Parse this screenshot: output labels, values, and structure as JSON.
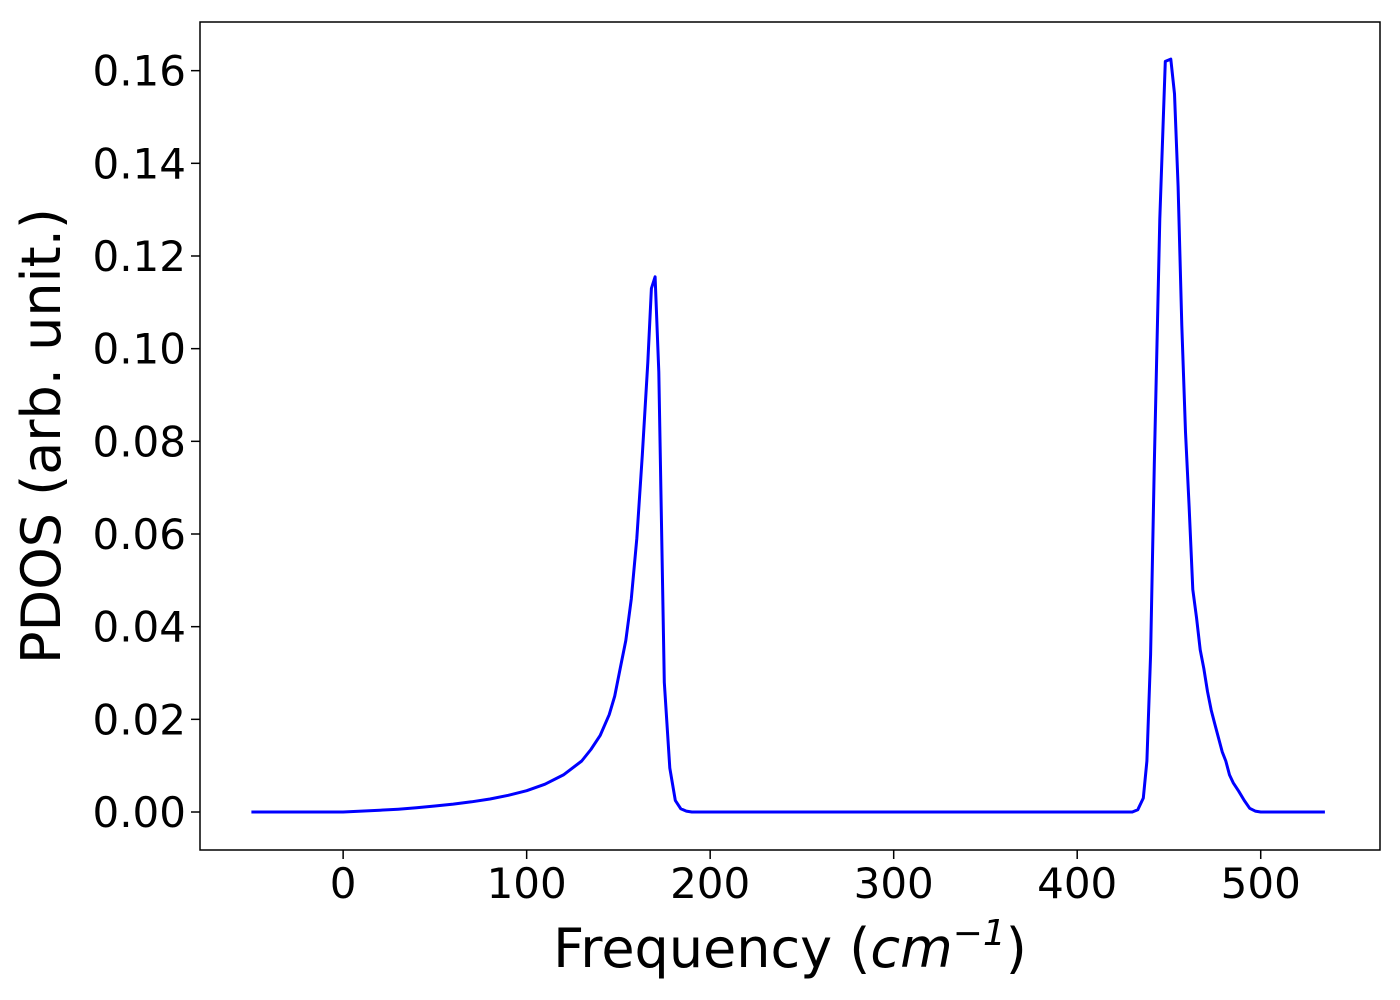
{
  "chart_data": {
    "type": "line",
    "title": "",
    "xlabel_prefix": "Frequency (",
    "xlabel_unit_base": "cm",
    "xlabel_unit_sup": "−1",
    "xlabel_suffix": ")",
    "ylabel": "PDOS (arb. unit.)",
    "xlim": [
      -78,
      565
    ],
    "ylim": [
      -0.0082,
      0.1705
    ],
    "xticks": [
      0,
      100,
      200,
      300,
      400,
      500
    ],
    "xtick_labels": [
      "0",
      "100",
      "200",
      "300",
      "400",
      "500"
    ],
    "yticks": [
      0.0,
      0.02,
      0.04,
      0.06,
      0.08,
      0.1,
      0.12,
      0.14,
      0.16
    ],
    "ytick_labels": [
      "0.00",
      "0.02",
      "0.04",
      "0.06",
      "0.08",
      "0.10",
      "0.12",
      "0.14",
      "0.16"
    ],
    "grid": false,
    "legend": false,
    "line_color": "#0000ff",
    "series": [
      {
        "x": [
          -50,
          0,
          10,
          20,
          30,
          40,
          50,
          60,
          70,
          80,
          90,
          100,
          110,
          120,
          130,
          135,
          140,
          145,
          148,
          151,
          154,
          157,
          160,
          163,
          166,
          168,
          170,
          172,
          175,
          178,
          181,
          184,
          187,
          190,
          200,
          300,
          400,
          430,
          433,
          436,
          438,
          440,
          442,
          445,
          448,
          451,
          453,
          455,
          457,
          459,
          461,
          463,
          465,
          467,
          469,
          471,
          473,
          475,
          477,
          479,
          481,
          483,
          485,
          488,
          491,
          494,
          497,
          500,
          535
        ],
        "y": [
          0.0,
          0.0,
          0.0002,
          0.0004,
          0.0006,
          0.0009,
          0.0013,
          0.0017,
          0.0022,
          0.0028,
          0.0036,
          0.0046,
          0.006,
          0.008,
          0.011,
          0.0135,
          0.0165,
          0.021,
          0.025,
          0.031,
          0.037,
          0.046,
          0.059,
          0.077,
          0.097,
          0.113,
          0.1155,
          0.095,
          0.028,
          0.0095,
          0.0025,
          0.0007,
          0.0002,
          0.0,
          0.0,
          0.0,
          0.0,
          0.0,
          0.0005,
          0.003,
          0.011,
          0.034,
          0.075,
          0.128,
          0.162,
          0.1625,
          0.155,
          0.135,
          0.105,
          0.082,
          0.066,
          0.048,
          0.042,
          0.035,
          0.031,
          0.026,
          0.022,
          0.019,
          0.016,
          0.013,
          0.011,
          0.008,
          0.0063,
          0.0045,
          0.0025,
          0.0008,
          0.0002,
          0.0,
          0.0
        ]
      }
    ]
  }
}
